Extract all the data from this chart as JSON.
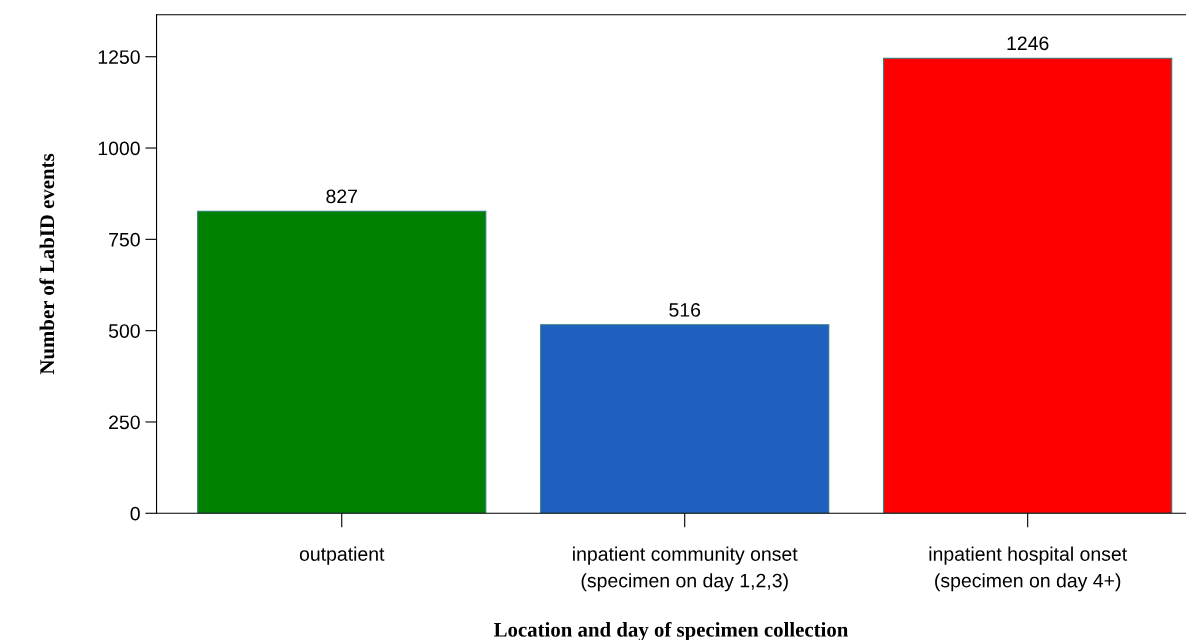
{
  "chart_data": {
    "type": "bar",
    "xlabel": "Location and day of specimen collection",
    "ylabel": "Number of LabID events",
    "categories": [
      "outpatient",
      "inpatient community onset\n(specimen on day 1,2,3)",
      "inpatient hospital onset\n(specimen on day 4+)"
    ],
    "values": [
      827,
      516,
      1246
    ],
    "colors": [
      "#008000",
      "#1f5fbf",
      "#ff0000"
    ],
    "ylim": [
      0,
      1365
    ],
    "yticks": [
      0,
      250,
      500,
      750,
      1000,
      1250
    ],
    "data_labels": true,
    "grid": false,
    "legend": false
  }
}
